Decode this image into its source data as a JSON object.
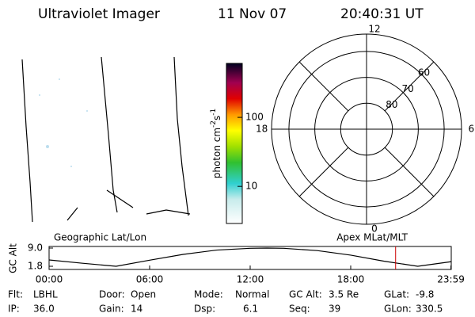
{
  "header": {
    "title": "Ultraviolet Imager",
    "date": "11 Nov 07",
    "time": "20:40:31 UT"
  },
  "colorbar": {
    "label": [
      "photon cm",
      "-2",
      "s",
      "-1"
    ],
    "log": true,
    "lim": [
      2.9,
      605
    ],
    "ticks": [
      10,
      100
    ]
  },
  "polar": {
    "hour_labels": [
      12,
      18,
      6,
      0
    ],
    "lat_rings": [
      60,
      70,
      80
    ],
    "lat_limit": 53.3
  },
  "chart_data": {
    "type": "line",
    "title_left": "Geographic Lat/Lon",
    "title_right": "Apex MLat/MLT",
    "ylabel": "GC Alt",
    "x": [
      0,
      2,
      4,
      6,
      8,
      10,
      12,
      13,
      14,
      16,
      18,
      20,
      22,
      23.98
    ],
    "values": [
      4.3,
      3.0,
      1.8,
      4.2,
      6.5,
      8.2,
      8.9,
      9.0,
      8.9,
      8.0,
      6.2,
      3.8,
      1.8,
      3.6
    ],
    "color": "#000000",
    "xlim": [
      0,
      24
    ],
    "ylim": [
      1.8,
      9.0
    ],
    "xticks": [
      {
        "value": 0,
        "label": "00:00"
      },
      {
        "value": 6,
        "label": "06:00"
      },
      {
        "value": 12,
        "label": "12:00"
      },
      {
        "value": 18,
        "label": "18:00"
      },
      {
        "value": 23.98,
        "label": "23:59"
      }
    ],
    "yticks": [
      {
        "value": 9.0,
        "label": "9.0"
      },
      1.8
    ],
    "current_time": 20.68,
    "current_color": "#cc0000"
  },
  "footer": [
    [
      {
        "label": "Flt:",
        "value": "LBHL"
      },
      {
        "label": "Door:",
        "value": "Open"
      },
      {
        "label": "Mode:",
        "value": "Normal"
      },
      {
        "label": "GC Alt:",
        "value": "3.5 Re"
      },
      {
        "label": "GLat:",
        "value": "-9.8"
      }
    ],
    [
      {
        "label": "IP:",
        "value": "36.0"
      },
      {
        "label": "Gain:",
        "value": "14"
      },
      {
        "label": "Dsp:",
        "value": "6.1"
      },
      {
        "label": "Seq:",
        "value": "39"
      },
      {
        "label": "GLon:",
        "value": "330.5"
      }
    ]
  ]
}
